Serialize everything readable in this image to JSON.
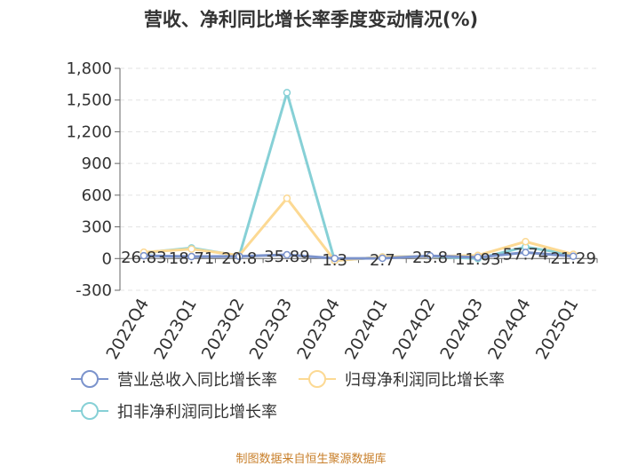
{
  "chart_data": {
    "type": "line",
    "title": "营收、净利同比增长率季度变动情况(%)",
    "categories": [
      "2022Q4",
      "2023Q1",
      "2023Q2",
      "2023Q3",
      "2023Q4",
      "2024Q1",
      "2024Q2",
      "2024Q3",
      "2024Q4",
      "2025Q1"
    ],
    "ylim": [
      -300,
      1800
    ],
    "yticks": [
      -300,
      0,
      300,
      600,
      900,
      1200,
      1500,
      1800
    ],
    "ytick_labels": [
      "-300",
      "0",
      "300",
      "600",
      "900",
      "1,200",
      "1,500",
      "1,800"
    ],
    "grid": true,
    "legend_position": "bottom",
    "series": [
      {
        "name": "营业总收入同比增长率",
        "color": "#7b93cc",
        "values": [
          26.83,
          18.71,
          20.8,
          35.89,
          1.3,
          2.7,
          25.8,
          11.93,
          57.74,
          21.29
        ],
        "labels": [
          "26.83",
          "18.71",
          "20.8",
          "35.89",
          "1.3",
          "2.7",
          "25.8",
          "11.93",
          "57.74",
          "21.29"
        ]
      },
      {
        "name": "归母净利润同比增长率",
        "color": "#fcd993",
        "values": [
          60,
          90,
          30,
          570,
          -20,
          15,
          20,
          30,
          160,
          40
        ]
      },
      {
        "name": "扣非净利润同比增长率",
        "color": "#86d0d6",
        "values": [
          55,
          100,
          25,
          1570,
          -20,
          15,
          20,
          0,
          110,
          35
        ]
      }
    ]
  },
  "source": "制图数据来自恒生聚源数据库"
}
